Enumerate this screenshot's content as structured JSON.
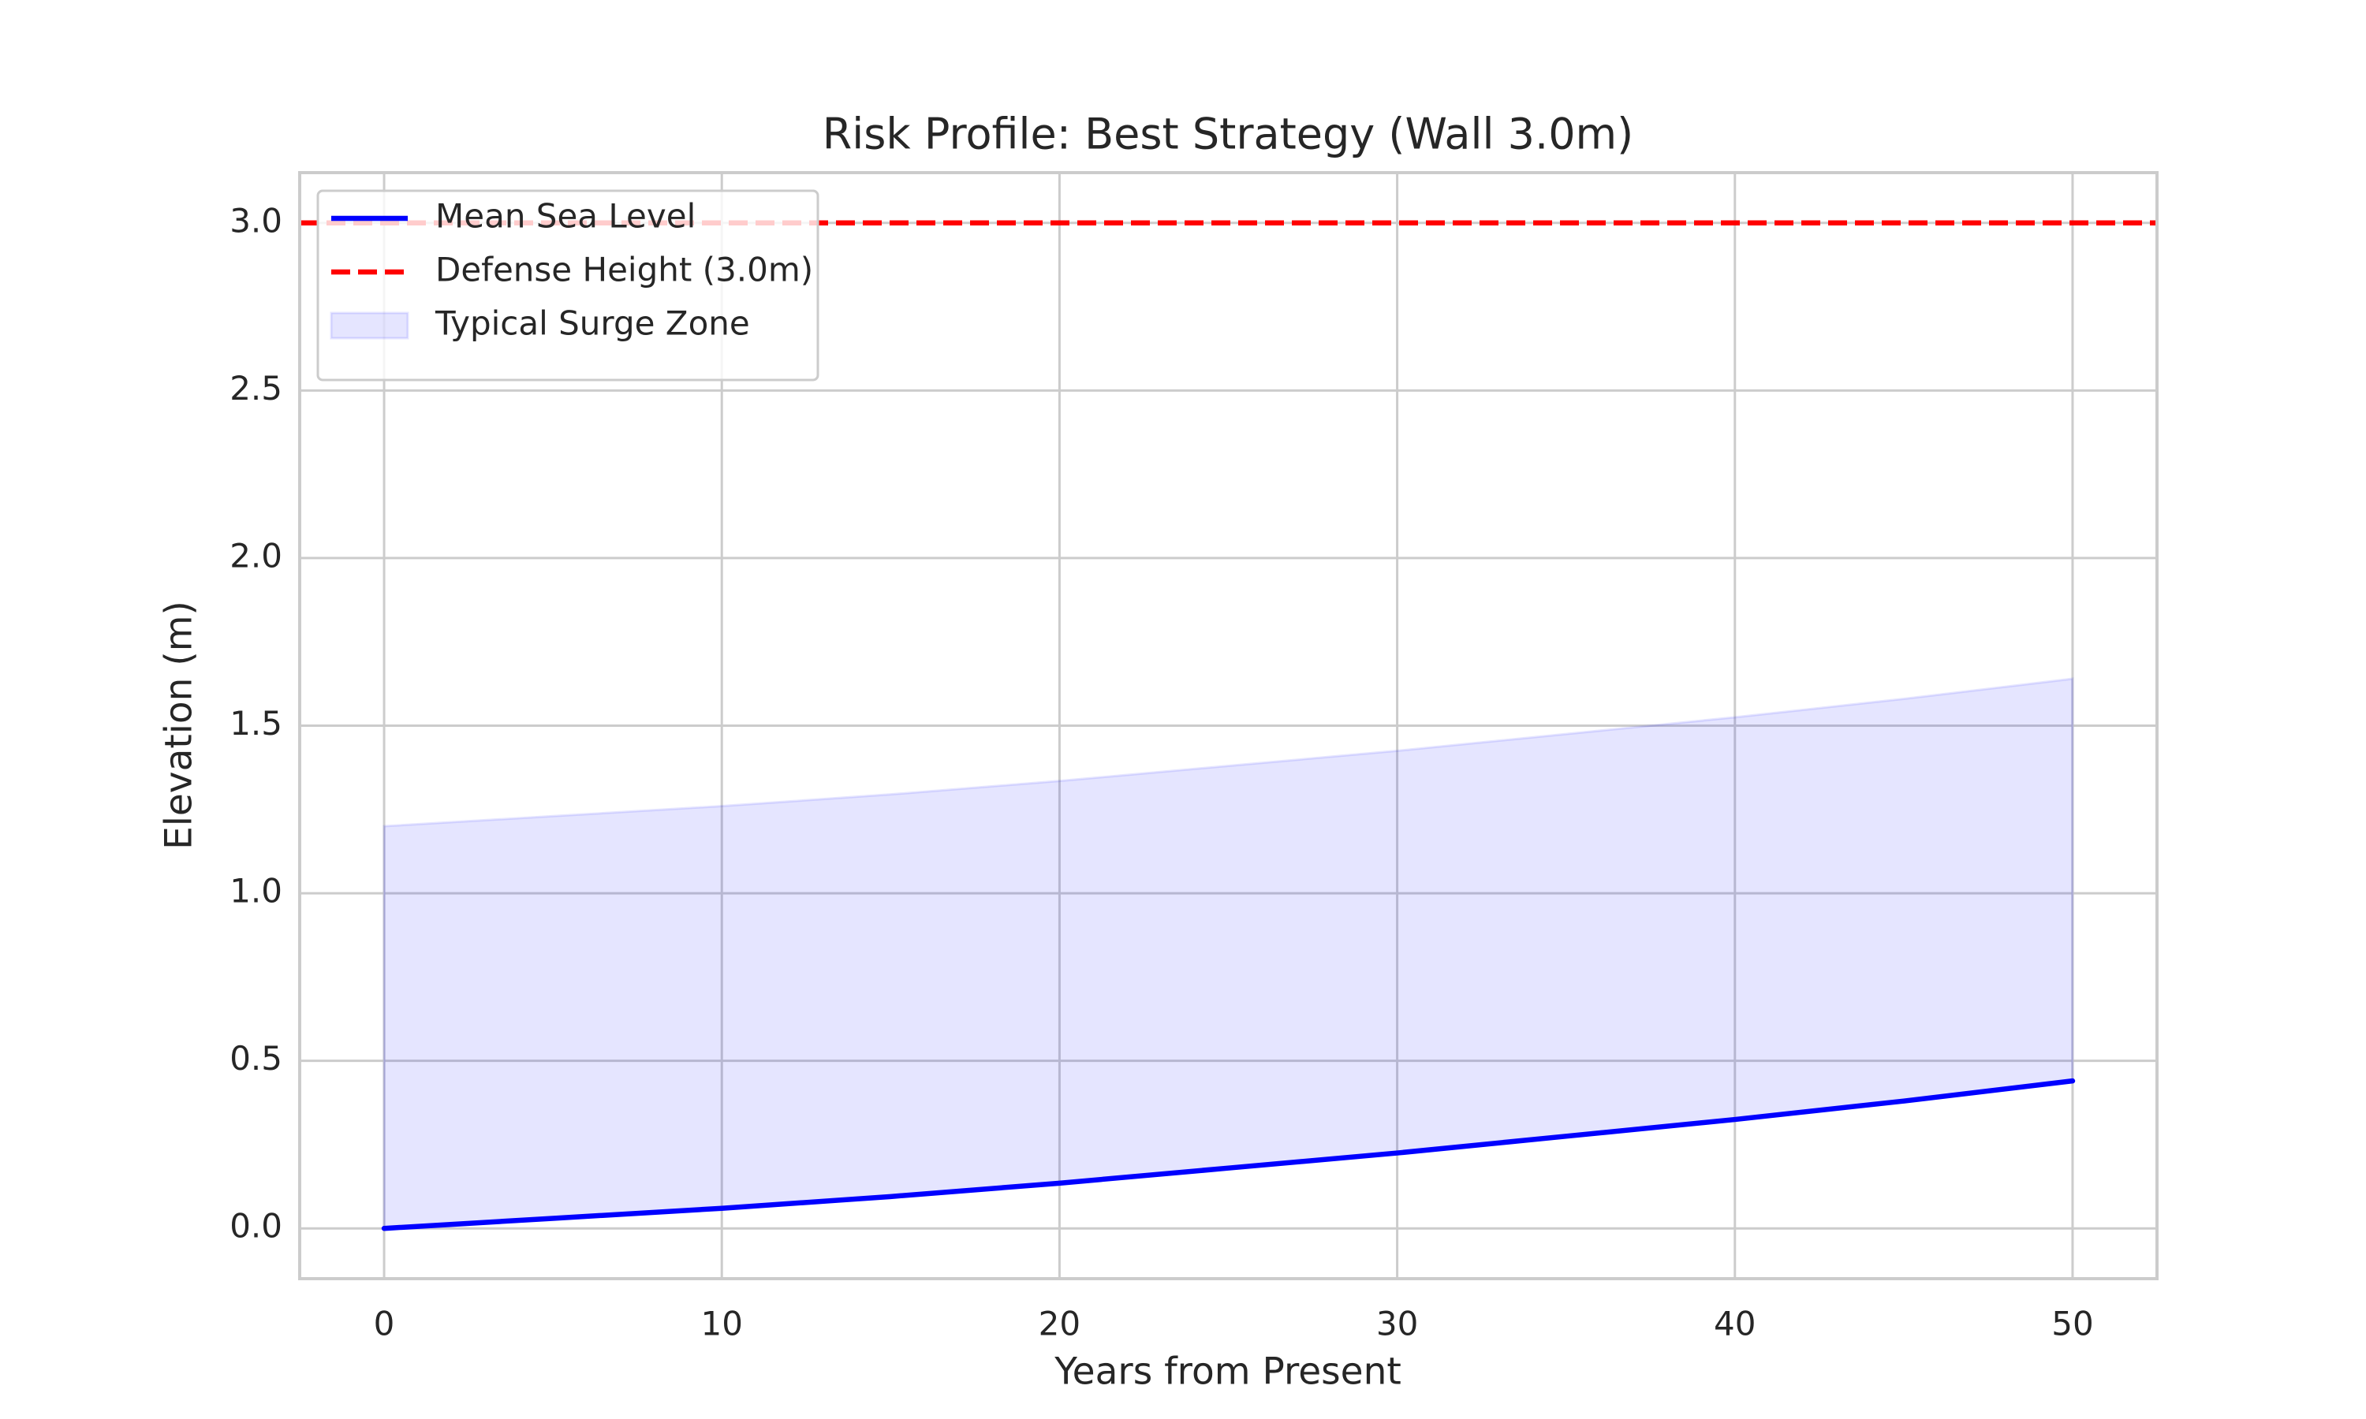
{
  "chart_data": {
    "type": "line",
    "title": "Risk Profile: Best Strategy (Wall 3.0m)",
    "xlabel": "Years from Present",
    "ylabel": "Elevation (m)",
    "x": [
      0,
      5,
      10,
      15,
      20,
      25,
      30,
      35,
      40,
      45,
      50
    ],
    "series": [
      {
        "name": "Mean Sea Level",
        "color": "#0000ff",
        "values": [
          0,
          0.03,
          0.06,
          0.095,
          0.135,
          0.18,
          0.225,
          0.275,
          0.325,
          0.38,
          0.44
        ]
      },
      {
        "name": "Defense Height (3.0m)",
        "color": "#ff0000",
        "style": "dashed",
        "y": 3.0
      }
    ],
    "bands": [
      {
        "name": "Typical Surge Zone",
        "color": "#0000ff",
        "opacity": 0.1,
        "lower": [
          0,
          0.03,
          0.06,
          0.095,
          0.135,
          0.18,
          0.225,
          0.275,
          0.325,
          0.38,
          0.44
        ],
        "upper": [
          1.2,
          1.23,
          1.26,
          1.295,
          1.335,
          1.38,
          1.425,
          1.475,
          1.525,
          1.58,
          1.64
        ]
      }
    ],
    "xlim": [
      -2.5,
      52.5
    ],
    "xticks": [
      0,
      10,
      20,
      30,
      40,
      50
    ],
    "ylim": [
      -0.15,
      3.15
    ],
    "yticks": [
      {
        "value": 0,
        "label": "0.0"
      },
      {
        "value": 0.5,
        "label": "0.5"
      },
      {
        "value": 1,
        "label": "1.0"
      },
      {
        "value": 1.5,
        "label": "1.5"
      },
      {
        "value": 2,
        "label": "2.0"
      },
      {
        "value": 2.5,
        "label": "2.5"
      },
      {
        "value": 3,
        "label": "3.0"
      }
    ],
    "grid": true,
    "legend": "upper left"
  }
}
